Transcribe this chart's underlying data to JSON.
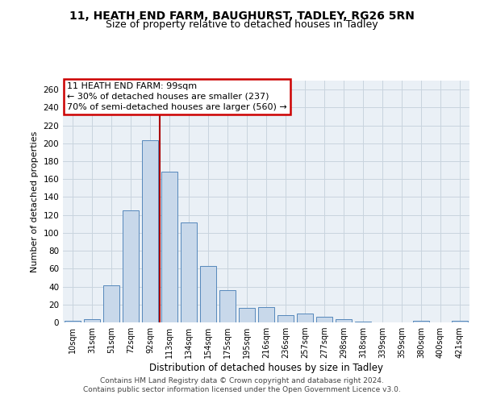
{
  "title1": "11, HEATH END FARM, BAUGHURST, TADLEY, RG26 5RN",
  "title2": "Size of property relative to detached houses in Tadley",
  "xlabel": "Distribution of detached houses by size in Tadley",
  "ylabel": "Number of detached properties",
  "categories": [
    "10sqm",
    "31sqm",
    "51sqm",
    "72sqm",
    "92sqm",
    "113sqm",
    "134sqm",
    "154sqm",
    "175sqm",
    "195sqm",
    "216sqm",
    "236sqm",
    "257sqm",
    "277sqm",
    "298sqm",
    "318sqm",
    "339sqm",
    "359sqm",
    "380sqm",
    "400sqm",
    "421sqm"
  ],
  "values": [
    2,
    4,
    41,
    125,
    203,
    168,
    112,
    63,
    36,
    16,
    17,
    8,
    10,
    6,
    4,
    1,
    0,
    0,
    2,
    0,
    2
  ],
  "bar_color": "#c8d8ea",
  "bar_edge_color": "#5588bb",
  "property_label": "11 HEATH END FARM: 99sqm",
  "annotation_line1": "← 30% of detached houses are smaller (237)",
  "annotation_line2": "70% of semi-detached houses are larger (560) →",
  "vline_x_index": 4,
  "vline_color": "#aa0000",
  "box_color": "#cc0000",
  "ylim": [
    0,
    270
  ],
  "yticks": [
    0,
    20,
    40,
    60,
    80,
    100,
    120,
    140,
    160,
    180,
    200,
    220,
    240,
    260
  ],
  "footer1": "Contains HM Land Registry data © Crown copyright and database right 2024.",
  "footer2": "Contains public sector information licensed under the Open Government Licence v3.0.",
  "grid_color": "#c8d4de",
  "bg_color": "#eaf0f6"
}
